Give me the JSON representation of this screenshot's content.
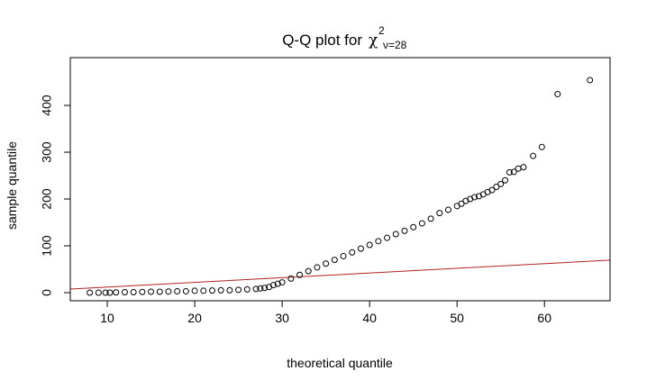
{
  "chart_data": {
    "type": "scatter",
    "title": "Q-Q plot for",
    "title_symbol": "χ",
    "title_superscript": "2",
    "title_subscript": "ν=28",
    "x_label": "theoretical quantile",
    "y_label": "sample quantile",
    "xlim": [
      5.77,
      67.5
    ],
    "ylim": [
      -17.3,
      502
    ],
    "xticks": [
      10,
      20,
      30,
      40,
      50,
      60
    ],
    "yticks": [
      0,
      100,
      200,
      300,
      400
    ],
    "point_color": "#000000",
    "ref_line": {
      "color": "#b22222",
      "x": [
        5.77,
        67.5
      ],
      "y": [
        7.7,
        69.5
      ]
    },
    "x": [
      8,
      9,
      9.8,
      10.3,
      11,
      12,
      13,
      14,
      15,
      16,
      17,
      18,
      19,
      20,
      21,
      22,
      23,
      24,
      25,
      26,
      27,
      27.5,
      28,
      28.5,
      29,
      29.5,
      30,
      31,
      32,
      33,
      34,
      35,
      36,
      37,
      38,
      39,
      40,
      41,
      42,
      43,
      44,
      45,
      46,
      47,
      48,
      49,
      50,
      50.5,
      51,
      51.5,
      52,
      52.5,
      53,
      53.5,
      54,
      54.5,
      55,
      55.5,
      56,
      56.5,
      57,
      57.6,
      58.7,
      59.7,
      61.5,
      65.2
    ],
    "values": [
      0,
      0,
      0,
      0,
      0.5,
      1,
      1,
      1.5,
      2,
      2,
      2.5,
      3,
      3,
      4,
      4,
      4.5,
      5,
      5,
      6,
      7,
      8,
      9,
      10,
      12,
      16,
      19,
      22,
      30,
      38,
      46,
      54,
      62,
      70,
      78,
      86,
      94,
      102,
      110,
      117,
      125,
      132,
      140,
      148,
      158,
      170,
      177,
      185,
      190,
      196,
      200,
      204,
      206,
      210,
      215,
      219,
      226,
      232,
      240,
      257,
      258,
      265,
      268,
      292,
      311,
      424,
      454
    ]
  }
}
